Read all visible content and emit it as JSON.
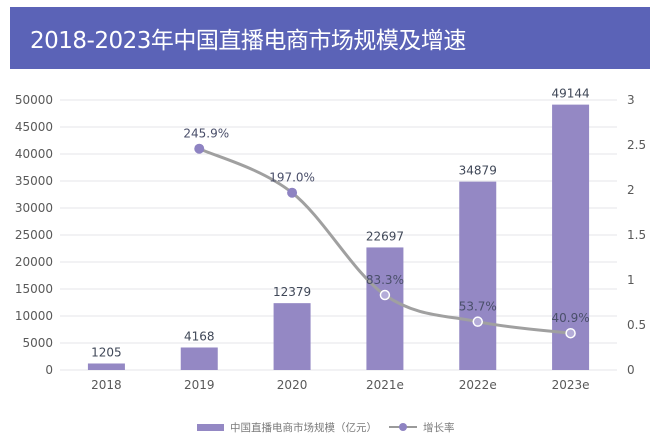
{
  "title": "2018-2023年中国直播电商市场规模及增速",
  "colors": {
    "title_bg": "#5b63b7",
    "bar": "#9488c4",
    "line": "#a0a0a0",
    "marker": "#8e83c2",
    "grid": "#e6e6ea"
  },
  "chart_data": {
    "type": "bar+line",
    "title": "2018-2023年中国直播电商市场规模及增速",
    "categories": [
      "2018",
      "2019",
      "2020",
      "2021e",
      "2022e",
      "2023e"
    ],
    "series": [
      {
        "name": "中国直播电商市场规模（亿元）",
        "type": "bar",
        "axis": "left",
        "values": [
          1205,
          4168,
          12379,
          22697,
          34879,
          49144
        ],
        "labels": [
          "1205",
          "4168",
          "12379",
          "22697",
          "34879",
          "49144"
        ]
      },
      {
        "name": "增长率",
        "type": "line",
        "axis": "right",
        "values": [
          null,
          2.459,
          1.97,
          0.833,
          0.537,
          0.409
        ],
        "labels": [
          "",
          "245.9%",
          "197.0%",
          "83.3%",
          "53.7%",
          "40.9%"
        ]
      }
    ],
    "y_left": {
      "min": 0,
      "max": 50000,
      "ticks": [
        "0",
        "5000",
        "10000",
        "15000",
        "20000",
        "25000",
        "30000",
        "35000",
        "40000",
        "45000",
        "50000"
      ]
    },
    "y_right": {
      "min": 0,
      "max": 3,
      "ticks": [
        "0",
        "0.5",
        "1",
        "1.5",
        "2",
        "2.5",
        "3"
      ]
    },
    "grid": true,
    "legend_position": "bottom"
  }
}
